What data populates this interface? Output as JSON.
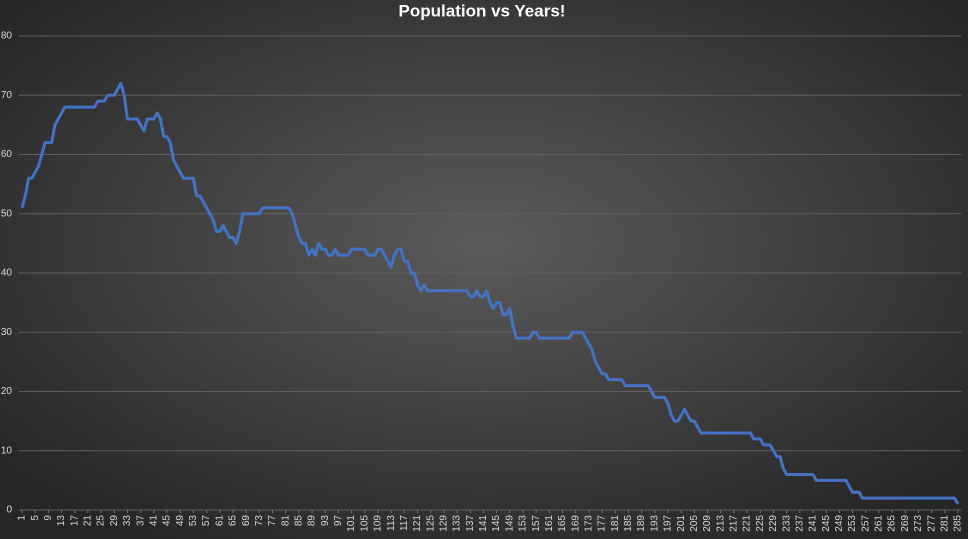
{
  "chart_data": {
    "type": "line",
    "title": "Population vs Years!",
    "x": [
      1,
      2,
      3,
      4,
      5,
      6,
      7,
      8,
      9,
      10,
      11,
      12,
      13,
      14,
      15,
      16,
      17,
      18,
      19,
      20,
      21,
      22,
      23,
      24,
      25,
      26,
      27,
      28,
      29,
      30,
      31,
      32,
      33,
      34,
      35,
      36,
      37,
      38,
      39,
      40,
      41,
      42,
      43,
      44,
      45,
      46,
      47,
      48,
      49,
      50,
      51,
      52,
      53,
      54,
      55,
      56,
      57,
      58,
      59,
      60,
      61,
      62,
      63,
      64,
      65,
      66,
      67,
      68,
      69,
      70,
      71,
      72,
      73,
      74,
      75,
      76,
      77,
      78,
      79,
      80,
      81,
      82,
      83,
      84,
      85,
      86,
      87,
      88,
      89,
      90,
      91,
      92,
      93,
      94,
      95,
      96,
      97,
      98,
      99,
      100,
      101,
      102,
      103,
      104,
      105,
      106,
      107,
      108,
      109,
      110,
      111,
      112,
      113,
      114,
      115,
      116,
      117,
      118,
      119,
      120,
      121,
      122,
      123,
      124,
      125,
      126,
      127,
      128,
      129,
      130,
      131,
      132,
      133,
      134,
      135,
      136,
      137,
      138,
      139,
      140,
      141,
      142,
      143,
      144,
      145,
      146,
      147,
      148,
      149,
      150,
      151,
      152,
      153,
      154,
      155,
      156,
      157,
      158,
      159,
      160,
      161,
      162,
      163,
      164,
      165,
      166,
      167,
      168,
      169,
      170,
      171,
      172,
      173,
      174,
      175,
      176,
      177,
      178,
      179,
      180,
      181,
      182,
      183,
      184,
      185,
      186,
      187,
      188,
      189,
      190,
      191,
      192,
      193,
      194,
      195,
      196,
      197,
      198,
      199,
      200,
      201,
      202,
      203,
      204,
      205,
      206,
      207,
      208,
      209,
      210,
      211,
      212,
      213,
      214,
      215,
      216,
      217,
      218,
      219,
      220,
      221,
      222,
      223,
      224,
      225,
      226,
      227,
      228,
      229,
      230,
      231,
      232,
      233,
      234,
      235,
      236,
      237,
      238,
      239,
      240,
      241,
      242,
      243,
      244,
      245,
      246,
      247,
      248,
      249,
      250,
      251,
      252,
      253,
      254,
      255,
      256,
      257,
      258,
      259,
      260,
      261,
      262,
      263,
      264,
      265,
      266,
      267,
      268,
      269,
      270,
      271,
      272,
      273,
      274,
      275,
      276,
      277,
      278,
      279,
      280,
      281,
      282,
      283,
      284,
      285
    ],
    "values": [
      51,
      53,
      56,
      56,
      57,
      58,
      60,
      62,
      62,
      62,
      65,
      66,
      67,
      68,
      68,
      68,
      68,
      68,
      68,
      68,
      68,
      68,
      68,
      69,
      69,
      69,
      70,
      70,
      70,
      71,
      72,
      70,
      66,
      66,
      66,
      66,
      65,
      64,
      66,
      66,
      66,
      67,
      66,
      63,
      63,
      62,
      59,
      58,
      57,
      56,
      56,
      56,
      56,
      53,
      53,
      52,
      51,
      50,
      49,
      47,
      47,
      48,
      47,
      46,
      46,
      45,
      47,
      50,
      50,
      50,
      50,
      50,
      50,
      51,
      51,
      51,
      51,
      51,
      51,
      51,
      51,
      51,
      50,
      48,
      46,
      45,
      45,
      43,
      44,
      43,
      45,
      44,
      44,
      43,
      43,
      44,
      43,
      43,
      43,
      43,
      44,
      44,
      44,
      44,
      44,
      43,
      43,
      43,
      44,
      44,
      43,
      42,
      41,
      43,
      44,
      44,
      42,
      42,
      40,
      40,
      38,
      37,
      38,
      37,
      37,
      37,
      37,
      37,
      37,
      37,
      37,
      37,
      37,
      37,
      37,
      37,
      36,
      36,
      37,
      36,
      36,
      37,
      35,
      34,
      35,
      35,
      33,
      33,
      34,
      31,
      29,
      29,
      29,
      29,
      29,
      30,
      30,
      29,
      29,
      29,
      29,
      29,
      29,
      29,
      29,
      29,
      29,
      30,
      30,
      30,
      30,
      29,
      28,
      27,
      25,
      24,
      23,
      23,
      22,
      22,
      22,
      22,
      22,
      21,
      21,
      21,
      21,
      21,
      21,
      21,
      21,
      20,
      19,
      19,
      19,
      19,
      18,
      16,
      15,
      15,
      16,
      17,
      16,
      15,
      15,
      14,
      13,
      13,
      13,
      13,
      13,
      13,
      13,
      13,
      13,
      13,
      13,
      13,
      13,
      13,
      13,
      13,
      12,
      12,
      12,
      11,
      11,
      11,
      10,
      9,
      9,
      7,
      6,
      6,
      6,
      6,
      6,
      6,
      6,
      6,
      6,
      5,
      5,
      5,
      5,
      5,
      5,
      5,
      5,
      5,
      5,
      4,
      3,
      3,
      3,
      2,
      2,
      2,
      2,
      2,
      2,
      2,
      2,
      2,
      2,
      2,
      2,
      2,
      2,
      2,
      2,
      2,
      2,
      2,
      2,
      2,
      2,
      2,
      2,
      2,
      2,
      2,
      2,
      2,
      1
    ],
    "color": "#4472c4",
    "xlim": [
      0,
      286
    ],
    "xticks": [
      1,
      5,
      9,
      13,
      17,
      21,
      25,
      29,
      33,
      37,
      41,
      45,
      49,
      53,
      57,
      61,
      65,
      69,
      73,
      77,
      81,
      85,
      89,
      93,
      97,
      101,
      105,
      109,
      113,
      117,
      121,
      125,
      129,
      133,
      137,
      141,
      145,
      149,
      153,
      157,
      161,
      165,
      169,
      173,
      177,
      181,
      185,
      189,
      193,
      197,
      201,
      205,
      209,
      213,
      217,
      221,
      225,
      229,
      233,
      237,
      241,
      245,
      249,
      253,
      257,
      261,
      265,
      269,
      273,
      277,
      281,
      285
    ],
    "ylim": [
      0,
      80
    ],
    "yticks": [
      0,
      10,
      20,
      30,
      40,
      50,
      60,
      70,
      80
    ],
    "grid": true
  }
}
